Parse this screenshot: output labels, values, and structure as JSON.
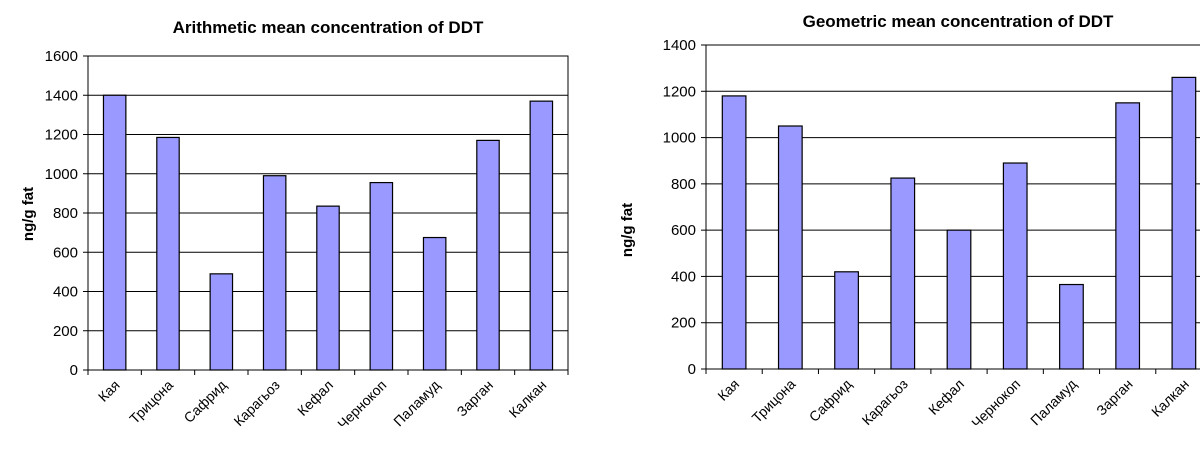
{
  "chart_data": [
    {
      "type": "bar",
      "title": "Arithmetic mean concentration of DDT",
      "xlabel": "",
      "ylabel": "ng/g fat",
      "ylim": [
        0,
        1600
      ],
      "yticks": [
        0,
        200,
        400,
        600,
        800,
        1000,
        1200,
        1400,
        1600
      ],
      "grid": true,
      "categories": [
        "Кая",
        "Трицона",
        "Сафрид",
        "Карагьоз",
        "Кефал",
        "Чернокоп",
        "Паламуд",
        "Зарган",
        "Калкан"
      ],
      "values": [
        1400,
        1185,
        490,
        990,
        835,
        955,
        675,
        1170,
        1370
      ],
      "bar_color": "#9999FF"
    },
    {
      "type": "bar",
      "title": "Geometric mean concentration of DDT",
      "xlabel": "",
      "ylabel": "ng/g fat",
      "ylim": [
        0,
        1400
      ],
      "yticks": [
        0,
        200,
        400,
        600,
        800,
        1000,
        1200,
        1400
      ],
      "grid": true,
      "categories": [
        "Кая",
        "Трицона",
        "Сафрид",
        "Карагьоз",
        "Кефал",
        "Чернокоп",
        "Паламуд",
        "Зарган",
        "Калкан"
      ],
      "values": [
        1180,
        1050,
        420,
        825,
        600,
        890,
        365,
        1150,
        1260
      ],
      "bar_color": "#9999FF"
    }
  ]
}
